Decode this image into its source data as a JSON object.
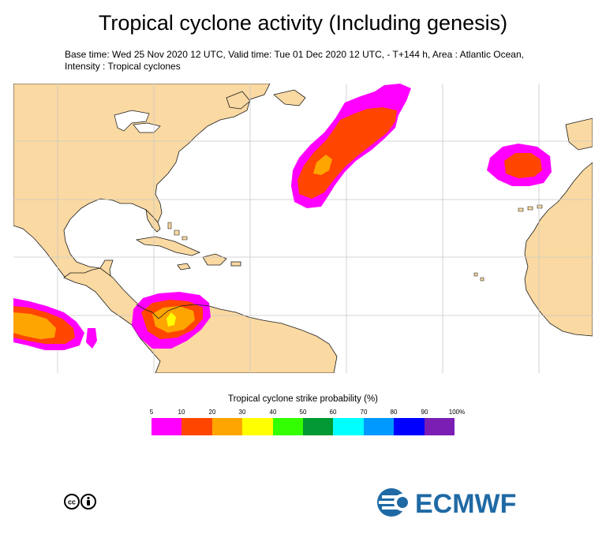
{
  "header": {
    "title": "Tropical cyclone activity (Including genesis)",
    "subtitle": "Base time: Wed 25 Nov 2020 12 UTC, Valid time: Tue 01 Dec 2020 12 UTC, - T+144 h, Area : Atlantic Ocean, Intensity : Tropical cyclones"
  },
  "colors": {
    "land": "#fad9a2",
    "ocean": "#ffffff",
    "coastline": "#1a1a1a",
    "grid": "#c8c8c8"
  },
  "legend": {
    "title": "Tropical cyclone strike probability (%)",
    "ticks": [
      "5",
      "10",
      "20",
      "30",
      "40",
      "50",
      "60",
      "70",
      "80",
      "90",
      "100%"
    ],
    "colors": [
      "#ff00ff",
      "#ff4500",
      "#ffa500",
      "#ffff00",
      "#33ff00",
      "#009933",
      "#00ffff",
      "#0099ff",
      "#0000ff",
      "#7a1eb4"
    ]
  },
  "footer": {
    "license_icon": "cc-by-icon",
    "logo_text": "ECMWF",
    "logo_color": "#1f6aa5"
  }
}
